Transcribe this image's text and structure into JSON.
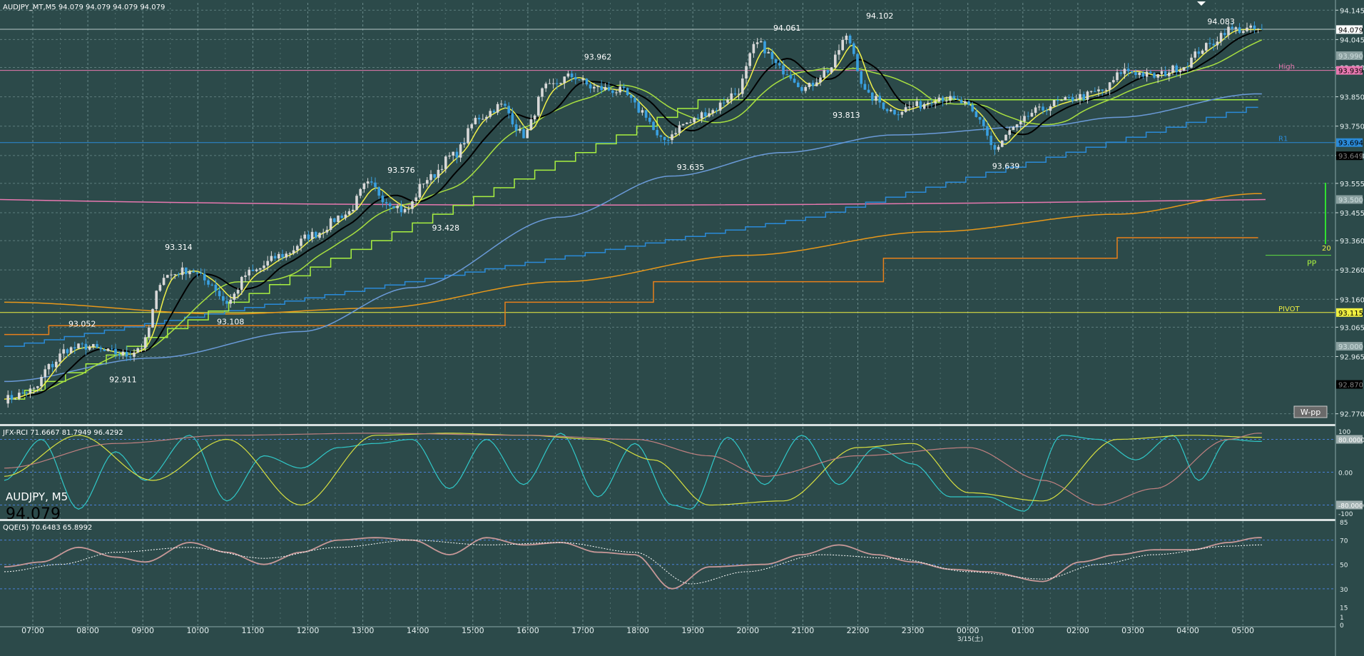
{
  "header": {
    "symbol_info": "AUDJPY_MT,M5  94.079 94.079 94.079 94.079",
    "overlay_symbol": "AUDJPY, M5",
    "overlay_price": "94.079"
  },
  "colors": {
    "background": "#2c4a4a",
    "grid": "#6a8a8a",
    "bull": "#d8d8d8",
    "bear": "#3aa0e0",
    "ma_yellow": "#f0f04a",
    "ma_green": "#a8e040",
    "ma_black": "#000000",
    "ma_blue": "#6a9ad8",
    "ma_orange": "#e8981a",
    "pink": "#e878b0",
    "step_blue": "#2a8ad8",
    "step_green": "#a8f040",
    "step_orange": "#e8801a",
    "rci_cyan": "#30c8c8",
    "rci_yellow": "#d8e040",
    "rci_brown": "#c08080",
    "qqe_main": "#c89898",
    "qqe_signal": "#ffffff"
  },
  "chart_data": [
    {
      "type": "candlestick",
      "title": "AUDJPY_MT,M5  94.079 94.079 94.079 94.079",
      "ylim": [
        92.74,
        94.17
      ],
      "y_ticks": [
        "94.145",
        "94.045",
        "93.950",
        "93.850",
        "93.750",
        "93.650",
        "93.555",
        "93.455",
        "93.360",
        "93.260",
        "93.160",
        "93.065",
        "92.965",
        "92.770"
      ],
      "x_ticks": [
        "07:00",
        "08:00",
        "09:00",
        "10:00",
        "11:00",
        "12:00",
        "13:00",
        "14:00",
        "15:00",
        "16:00",
        "17:00",
        "18:00",
        "19:00",
        "20:00",
        "21:00",
        "22:00",
        "23:00",
        "00:00",
        "01:00",
        "02:00",
        "03:00",
        "04:00",
        "05:00"
      ],
      "date_label": "3/15(土)",
      "close_anchors": [
        [
          0,
          92.82
        ],
        [
          8,
          92.85
        ],
        [
          12,
          92.93
        ],
        [
          17,
          92.99
        ],
        [
          22,
          93.0
        ],
        [
          28,
          92.98
        ],
        [
          33,
          92.97
        ],
        [
          37,
          93.0
        ],
        [
          43,
          93.24
        ],
        [
          50,
          93.26
        ],
        [
          55,
          93.22
        ],
        [
          60,
          93.15
        ],
        [
          66,
          93.25
        ],
        [
          75,
          93.31
        ],
        [
          83,
          93.38
        ],
        [
          92,
          93.45
        ],
        [
          98,
          93.55
        ],
        [
          104,
          93.49
        ],
        [
          108,
          93.46
        ],
        [
          114,
          93.57
        ],
        [
          121,
          93.65
        ],
        [
          128,
          93.78
        ],
        [
          134,
          93.82
        ],
        [
          140,
          93.72
        ],
        [
          146,
          93.88
        ],
        [
          153,
          93.92
        ],
        [
          159,
          93.88
        ],
        [
          166,
          93.87
        ],
        [
          172,
          93.8
        ],
        [
          177,
          93.7
        ],
        [
          184,
          93.76
        ],
        [
          190,
          93.8
        ],
        [
          197,
          93.86
        ],
        [
          203,
          94.03
        ],
        [
          210,
          93.94
        ],
        [
          216,
          93.88
        ],
        [
          222,
          93.94
        ],
        [
          227,
          94.05
        ],
        [
          233,
          93.85
        ],
        [
          240,
          93.8
        ],
        [
          246,
          93.82
        ],
        [
          252,
          93.85
        ],
        [
          258,
          93.83
        ],
        [
          263,
          93.77
        ],
        [
          267,
          93.67
        ],
        [
          272,
          93.74
        ],
        [
          278,
          93.8
        ],
        [
          284,
          93.83
        ],
        [
          290,
          93.85
        ],
        [
          296,
          93.87
        ],
        [
          302,
          93.94
        ],
        [
          310,
          93.92
        ],
        [
          317,
          93.95
        ],
        [
          324,
          94.02
        ],
        [
          330,
          94.079
        ]
      ],
      "labels": [
        {
          "idx": 21,
          "value": "93.052",
          "pos": "above"
        },
        {
          "idx": 32,
          "value": "92.911",
          "pos": "below"
        },
        {
          "idx": 47,
          "value": "93.314",
          "pos": "above"
        },
        {
          "idx": 61,
          "value": "93.108",
          "pos": "below"
        },
        {
          "idx": 107,
          "value": "93.576",
          "pos": "above"
        },
        {
          "idx": 119,
          "value": "93.428",
          "pos": "below"
        },
        {
          "idx": 160,
          "value": "93.962",
          "pos": "above"
        },
        {
          "idx": 185,
          "value": "93.635",
          "pos": "below"
        },
        {
          "idx": 211,
          "value": "94.061",
          "pos": "above"
        },
        {
          "idx": 227,
          "value": "93.813",
          "pos": "below"
        },
        {
          "idx": 236,
          "value": "94.102",
          "pos": "above"
        },
        {
          "idx": 270,
          "value": "93.639",
          "pos": "below"
        },
        {
          "idx": 328,
          "value": "94.083",
          "pos": "above"
        }
      ],
      "levels": [
        {
          "name": "High",
          "value": 93.94,
          "color": "#e878b0",
          "tag": "93.939"
        },
        {
          "name": "R1",
          "value": 93.694,
          "color": "#2a8ad8",
          "tag": "93.694"
        },
        {
          "name": "PIVOT",
          "value": 93.115,
          "color": "#f0f040",
          "tag": "93.115"
        }
      ],
      "price_tags": [
        {
          "value": 94.079,
          "text": "94.079",
          "bg": "#ffffff",
          "fg": "#000000"
        },
        {
          "value": 93.99,
          "text": "93.990",
          "bg": "#8aa0a0",
          "fg": "#cfdede"
        },
        {
          "value": 93.649,
          "text": "93.649",
          "bg": "#000000",
          "fg": "#808080"
        },
        {
          "value": 93.5,
          "text": "93.500",
          "bg": "#8aa0a0",
          "fg": "#cfdede"
        },
        {
          "value": 93.0,
          "text": "93.000",
          "bg": "#8aa0a0",
          "fg": "#cfdede"
        },
        {
          "value": 92.87,
          "text": "92.870",
          "bg": "#000000",
          "fg": "#808080"
        }
      ],
      "pp_label": "PP",
      "pp_value": 93.31,
      "pp_count": "20",
      "wpp_label": "W-pp"
    },
    {
      "type": "line",
      "title": "JFX-RCI 71.6667 81.7949 96.4292",
      "ylim": [
        -100,
        100
      ],
      "y_ticks": [
        "100",
        "80.0000",
        "0.00",
        "-80.0000",
        "-100"
      ],
      "series": [
        {
          "color": "#30c8c8",
          "anchors": [
            [
              0,
              -20
            ],
            [
              10,
              80
            ],
            [
              20,
              -90
            ],
            [
              30,
              50
            ],
            [
              38,
              -20
            ],
            [
              50,
              90
            ],
            [
              60,
              -70
            ],
            [
              70,
              40
            ],
            [
              80,
              10
            ],
            [
              90,
              60
            ],
            [
              100,
              70
            ],
            [
              110,
              80
            ],
            [
              120,
              -40
            ],
            [
              130,
              80
            ],
            [
              140,
              -30
            ],
            [
              150,
              95
            ],
            [
              160,
              -60
            ],
            [
              170,
              70
            ],
            [
              180,
              -80
            ],
            [
              185,
              -90
            ],
            [
              195,
              85
            ],
            [
              205,
              -30
            ],
            [
              215,
              90
            ],
            [
              225,
              -30
            ],
            [
              235,
              60
            ],
            [
              245,
              20
            ],
            [
              255,
              -60
            ],
            [
              265,
              -60
            ],
            [
              275,
              -95
            ],
            [
              285,
              90
            ],
            [
              295,
              80
            ],
            [
              305,
              30
            ],
            [
              315,
              90
            ],
            [
              322,
              -20
            ],
            [
              330,
              80
            ],
            [
              338,
              75
            ]
          ]
        },
        {
          "color": "#d8e040",
          "anchors": [
            [
              0,
              -10
            ],
            [
              20,
              90
            ],
            [
              40,
              -20
            ],
            [
              60,
              80
            ],
            [
              80,
              -80
            ],
            [
              100,
              90
            ],
            [
              120,
              95
            ],
            [
              140,
              90
            ],
            [
              160,
              80
            ],
            [
              175,
              30
            ],
            [
              190,
              -80
            ],
            [
              210,
              -70
            ],
            [
              230,
              60
            ],
            [
              245,
              70
            ],
            [
              260,
              -50
            ],
            [
              280,
              -70
            ],
            [
              300,
              80
            ],
            [
              320,
              90
            ],
            [
              338,
              85
            ]
          ]
        },
        {
          "color": "#c08080",
          "anchors": [
            [
              0,
              10
            ],
            [
              30,
              70
            ],
            [
              60,
              90
            ],
            [
              100,
              95
            ],
            [
              140,
              90
            ],
            [
              170,
              80
            ],
            [
              190,
              40
            ],
            [
              205,
              -10
            ],
            [
              230,
              40
            ],
            [
              260,
              60
            ],
            [
              280,
              -20
            ],
            [
              295,
              -80
            ],
            [
              310,
              -40
            ],
            [
              330,
              80
            ],
            [
              338,
              95
            ]
          ]
        }
      ]
    },
    {
      "type": "line",
      "title": "QQE(5) 70.6483 65.8992",
      "ylim": [
        0,
        85
      ],
      "y_ticks": [
        "85",
        "70",
        "50",
        "30",
        "15",
        "1",
        "0"
      ],
      "series": [
        {
          "name": "main",
          "color": "#c89898",
          "anchors": [
            [
              0,
              48
            ],
            [
              10,
              52
            ],
            [
              20,
              64
            ],
            [
              30,
              56
            ],
            [
              38,
              52
            ],
            [
              50,
              68
            ],
            [
              60,
              60
            ],
            [
              70,
              50
            ],
            [
              80,
              60
            ],
            [
              90,
              70
            ],
            [
              100,
              72
            ],
            [
              110,
              70
            ],
            [
              120,
              58
            ],
            [
              130,
              72
            ],
            [
              140,
              66
            ],
            [
              150,
              68
            ],
            [
              160,
              60
            ],
            [
              170,
              58
            ],
            [
              180,
              30
            ],
            [
              190,
              48
            ],
            [
              205,
              50
            ],
            [
              215,
              58
            ],
            [
              225,
              66
            ],
            [
              235,
              58
            ],
            [
              245,
              52
            ],
            [
              255,
              46
            ],
            [
              265,
              44
            ],
            [
              280,
              36
            ],
            [
              290,
              52
            ],
            [
              300,
              58
            ],
            [
              310,
              62
            ],
            [
              320,
              62
            ],
            [
              330,
              68
            ],
            [
              338,
              72
            ]
          ]
        },
        {
          "name": "signal",
          "color": "#ffffff",
          "anchors": [
            [
              0,
              44
            ],
            [
              15,
              50
            ],
            [
              30,
              60
            ],
            [
              50,
              64
            ],
            [
              70,
              55
            ],
            [
              90,
              64
            ],
            [
              110,
              70
            ],
            [
              130,
              66
            ],
            [
              150,
              68
            ],
            [
              170,
              60
            ],
            [
              185,
              34
            ],
            [
              200,
              44
            ],
            [
              220,
              58
            ],
            [
              240,
              55
            ],
            [
              260,
              44
            ],
            [
              280,
              38
            ],
            [
              295,
              50
            ],
            [
              310,
              58
            ],
            [
              330,
              65
            ],
            [
              338,
              66
            ]
          ]
        }
      ]
    }
  ]
}
